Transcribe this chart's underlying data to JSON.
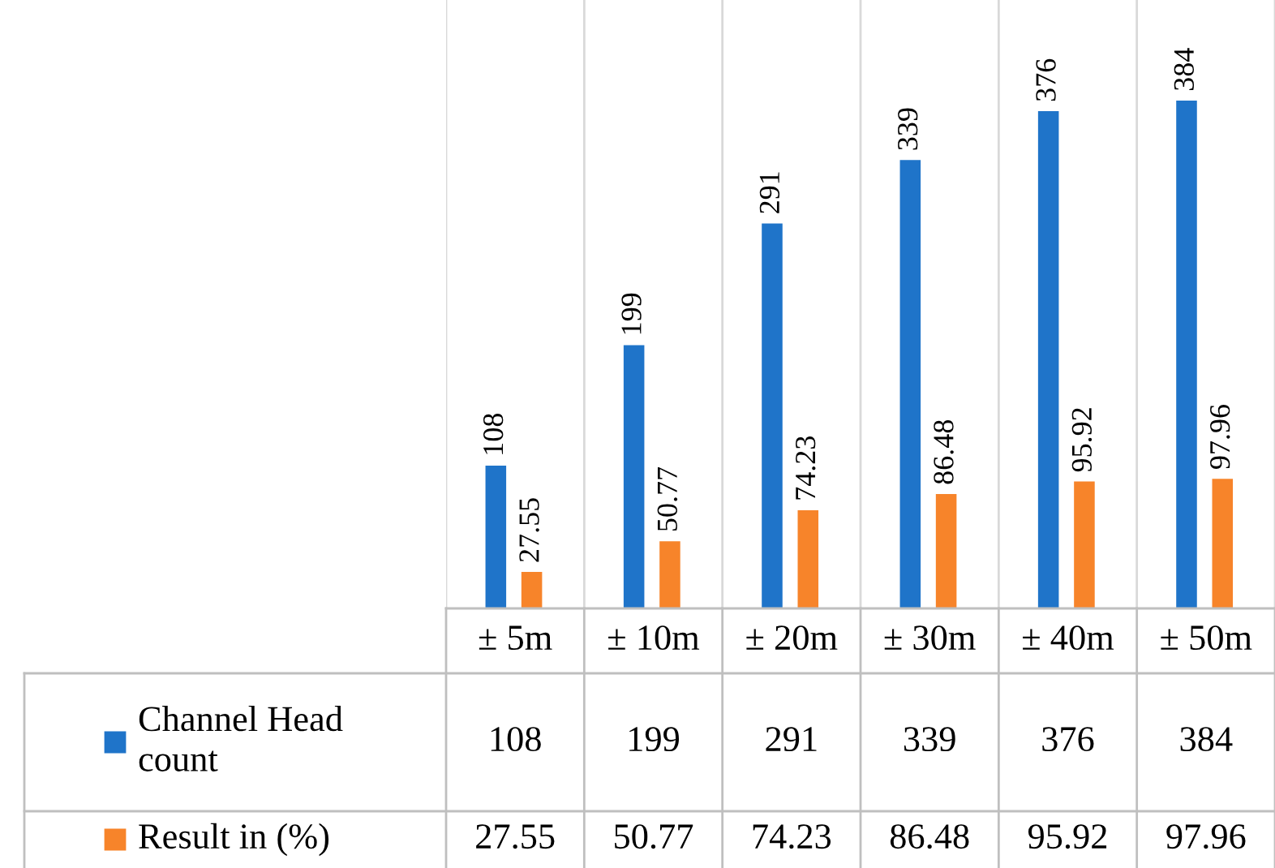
{
  "chart_data": {
    "type": "bar",
    "categories": [
      "± 5m",
      "± 10m",
      "± 20m",
      "± 30m",
      "± 40m",
      "± 50m"
    ],
    "series": [
      {
        "name": "Channel Head\ncount",
        "color": "#1f74c9",
        "values": [
          108,
          199,
          291,
          339,
          376,
          384
        ]
      },
      {
        "name": "Result in (%)",
        "color": "#f7842a",
        "values": [
          27.55,
          50.77,
          74.23,
          86.48,
          95.92,
          97.96
        ]
      }
    ],
    "ylim": [
      0,
      460
    ],
    "tick_labels": "x",
    "grid": "x",
    "data_labels": true,
    "legend": "bottom",
    "annotations": [
      "108",
      "199",
      "291",
      "339",
      "376",
      "384",
      "27.55",
      "50.77",
      "74.23",
      "86.48",
      "95.92",
      "97.96"
    ]
  }
}
